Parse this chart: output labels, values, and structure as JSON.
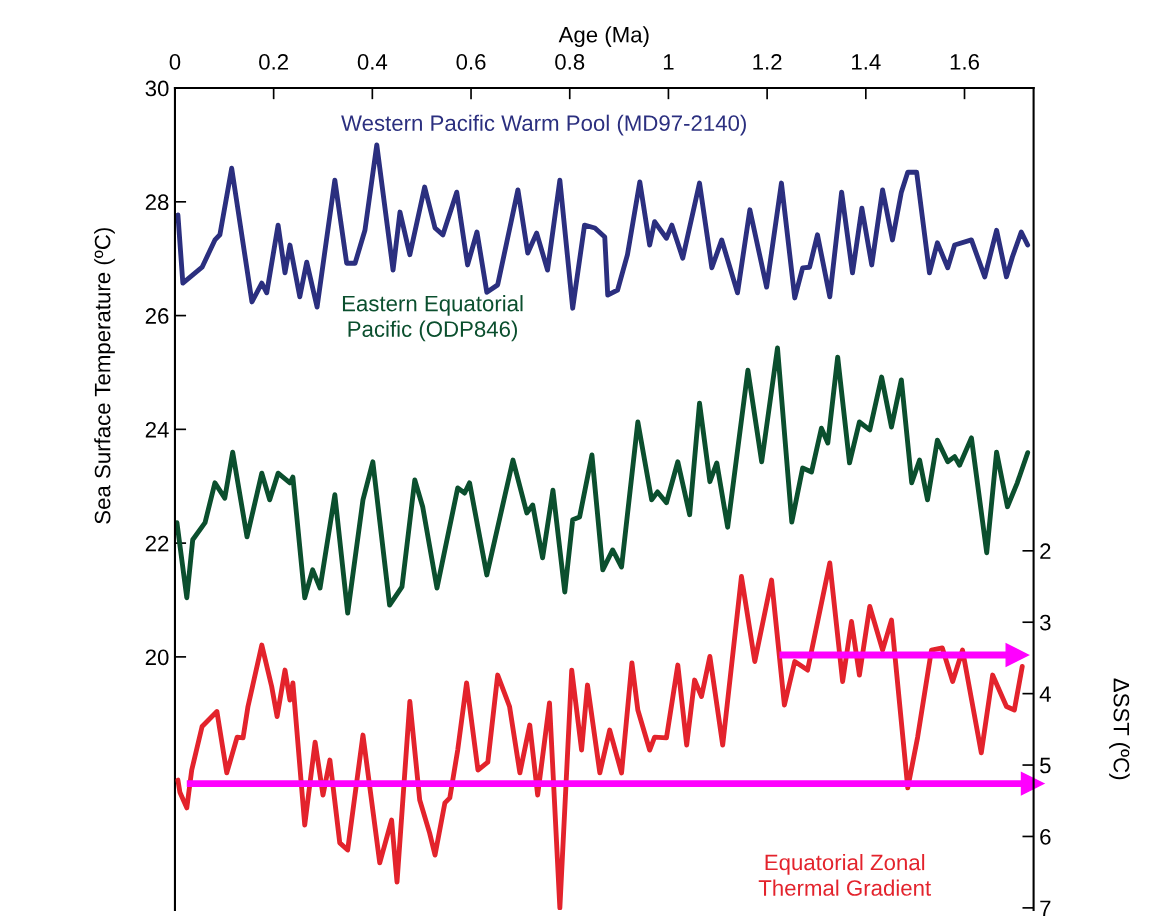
{
  "chart_data": {
    "type": "line",
    "xlabel": "Age (Ma)",
    "ylabel": "Sea Surface Temperature (ºC)",
    "y2label": "ΔSST (ºC)",
    "xlim": [
      0,
      1.74
    ],
    "xticks": [
      0,
      0.2,
      0.4,
      0.6,
      0.8,
      {
        "value": 1.0,
        "label": "1"
      },
      1.2,
      1.4,
      1.6
    ],
    "ylim": [
      15.55,
      30
    ],
    "yticks": [
      20,
      22,
      24,
      26,
      28,
      30
    ],
    "y2lim": [
      7.03,
      -4.48
    ],
    "y2ticks": [
      2,
      3,
      4,
      5,
      6,
      7
    ],
    "grid": false,
    "legend": false,
    "series": [
      {
        "name": "Western Pacific Warm Pool (MD97-2140)",
        "color": "#2b2f7f",
        "x": [
          0.006,
          0.016,
          0.055,
          0.081,
          0.091,
          0.115,
          0.156,
          0.176,
          0.186,
          0.209,
          0.223,
          0.233,
          0.253,
          0.267,
          0.288,
          0.324,
          0.348,
          0.365,
          0.385,
          0.409,
          0.442,
          0.456,
          0.476,
          0.506,
          0.527,
          0.543,
          0.571,
          0.593,
          0.612,
          0.632,
          0.654,
          0.695,
          0.715,
          0.733,
          0.755,
          0.78,
          0.806,
          0.83,
          0.851,
          0.871,
          0.877,
          0.897,
          0.917,
          0.942,
          0.962,
          0.972,
          0.996,
          1.007,
          1.029,
          1.063,
          1.088,
          1.108,
          1.14,
          1.165,
          1.199,
          1.229,
          1.256,
          1.272,
          1.286,
          1.302,
          1.327,
          1.351,
          1.373,
          1.392,
          1.412,
          1.434,
          1.454,
          1.472,
          1.485,
          1.503,
          1.529,
          1.545,
          1.566,
          1.58,
          1.614,
          1.641,
          1.665,
          1.685,
          1.697,
          1.715,
          1.728
        ],
        "values": [
          27.77,
          26.57,
          26.85,
          27.33,
          27.42,
          28.59,
          26.24,
          26.57,
          26.4,
          27.59,
          26.75,
          27.24,
          26.33,
          26.94,
          26.15,
          28.38,
          26.92,
          26.92,
          27.5,
          29.0,
          26.8,
          27.82,
          27.07,
          28.26,
          27.54,
          27.42,
          28.17,
          26.89,
          27.47,
          26.41,
          26.54,
          28.21,
          27.1,
          27.45,
          26.8,
          28.38,
          26.13,
          27.59,
          27.54,
          27.38,
          26.36,
          26.45,
          27.07,
          28.35,
          27.24,
          27.65,
          27.36,
          27.59,
          27.01,
          28.33,
          26.84,
          27.33,
          26.4,
          27.86,
          26.5,
          28.33,
          26.31,
          26.84,
          26.85,
          27.42,
          26.33,
          28.17,
          26.75,
          27.89,
          26.89,
          28.21,
          27.33,
          28.17,
          28.52,
          28.52,
          26.75,
          27.28,
          26.84,
          27.24,
          27.33,
          26.68,
          27.5,
          26.68,
          27.03,
          27.47,
          27.24
        ]
      },
      {
        "name": "Eastern Equatorial\nPacific (ODP846)",
        "color": "#0b4f2e",
        "x": [
          0.004,
          0.024,
          0.036,
          0.061,
          0.081,
          0.101,
          0.117,
          0.146,
          0.176,
          0.192,
          0.209,
          0.233,
          0.239,
          0.263,
          0.279,
          0.294,
          0.324,
          0.35,
          0.381,
          0.401,
          0.435,
          0.46,
          0.486,
          0.502,
          0.531,
          0.573,
          0.587,
          0.597,
          0.632,
          0.685,
          0.713,
          0.725,
          0.745,
          0.766,
          0.79,
          0.806,
          0.82,
          0.845,
          0.867,
          0.887,
          0.905,
          0.938,
          0.966,
          0.978,
          0.996,
          1.019,
          1.043,
          1.063,
          1.084,
          1.098,
          1.12,
          1.161,
          1.189,
          1.221,
          1.25,
          1.272,
          1.29,
          1.31,
          1.323,
          1.343,
          1.367,
          1.387,
          1.408,
          1.432,
          1.452,
          1.472,
          1.493,
          1.509,
          1.525,
          1.545,
          1.566,
          1.58,
          1.59,
          1.614,
          1.645,
          1.665,
          1.687,
          1.707,
          1.728
        ],
        "values": [
          22.36,
          21.04,
          22.06,
          22.36,
          23.06,
          22.79,
          23.6,
          22.11,
          23.23,
          22.76,
          23.23,
          23.06,
          23.16,
          21.04,
          21.53,
          21.21,
          22.85,
          20.77,
          22.76,
          23.43,
          20.91,
          21.23,
          23.11,
          22.64,
          21.21,
          22.97,
          22.88,
          23.06,
          21.44,
          23.46,
          22.53,
          22.67,
          21.74,
          22.93,
          21.14,
          22.41,
          22.46,
          23.55,
          21.53,
          21.88,
          21.58,
          24.13,
          22.76,
          22.9,
          22.71,
          23.43,
          22.5,
          24.46,
          23.08,
          23.41,
          22.28,
          25.04,
          23.43,
          25.43,
          22.37,
          23.32,
          23.25,
          24.02,
          23.76,
          25.27,
          23.41,
          24.13,
          23.99,
          24.92,
          24.04,
          24.87,
          23.06,
          23.46,
          22.76,
          23.81,
          23.43,
          23.52,
          23.37,
          23.85,
          21.83,
          23.6,
          22.64,
          23.06,
          23.59
        ]
      },
      {
        "name": "Equatorial Zonal\nThermal Gradient",
        "color": "#e3232c",
        "axis": "y2",
        "x": [
          0.006,
          0.01,
          0.024,
          0.034,
          0.055,
          0.085,
          0.105,
          0.126,
          0.138,
          0.148,
          0.176,
          0.196,
          0.207,
          0.223,
          0.233,
          0.239,
          0.263,
          0.284,
          0.3,
          0.314,
          0.334,
          0.35,
          0.381,
          0.415,
          0.439,
          0.45,
          0.476,
          0.496,
          0.516,
          0.527,
          0.547,
          0.557,
          0.573,
          0.591,
          0.614,
          0.634,
          0.654,
          0.678,
          0.699,
          0.719,
          0.735,
          0.759,
          0.78,
          0.804,
          0.824,
          0.836,
          0.861,
          0.881,
          0.905,
          0.926,
          0.938,
          0.962,
          0.972,
          0.996,
          1.019,
          1.037,
          1.053,
          1.067,
          1.084,
          1.11,
          1.148,
          1.175,
          1.209,
          1.235,
          1.256,
          1.282,
          1.327,
          1.353,
          1.371,
          1.387,
          1.408,
          1.434,
          1.452,
          1.485,
          1.505,
          1.533,
          1.555,
          1.576,
          1.596,
          1.634,
          1.657,
          1.685,
          1.701,
          1.717
        ],
        "values": [
          5.21,
          5.38,
          5.6,
          5.07,
          4.46,
          4.25,
          5.11,
          4.61,
          4.62,
          4.18,
          3.32,
          3.9,
          4.32,
          3.67,
          4.09,
          3.85,
          5.84,
          4.68,
          5.42,
          4.93,
          6.09,
          6.19,
          4.58,
          6.37,
          5.77,
          6.64,
          4.11,
          5.49,
          5.95,
          6.26,
          5.53,
          5.46,
          4.79,
          3.85,
          5.07,
          4.96,
          3.74,
          4.18,
          5.11,
          4.44,
          5.42,
          4.13,
          7.0,
          3.67,
          4.79,
          3.88,
          5.11,
          4.51,
          5.11,
          3.57,
          4.23,
          4.79,
          4.61,
          4.62,
          3.6,
          4.72,
          3.81,
          4.04,
          3.48,
          4.72,
          2.36,
          3.55,
          2.41,
          4.16,
          3.55,
          3.67,
          2.17,
          3.83,
          2.99,
          3.74,
          2.78,
          3.39,
          2.97,
          5.32,
          4.61,
          3.39,
          3.36,
          3.83,
          3.39,
          4.83,
          3.74,
          4.18,
          4.23,
          3.62
        ]
      },
      {
        "type": "line",
        "color": "#ff00ff",
        "axis": "y2",
        "x": [
          1.225,
          1.707
        ],
        "values": [
          3.46,
          3.46
        ]
      },
      {
        "type": "line",
        "color": "#ff00ff",
        "axis": "y2",
        "x": [
          0.024,
          1.738
        ],
        "values": [
          5.26,
          5.26
        ]
      }
    ]
  }
}
